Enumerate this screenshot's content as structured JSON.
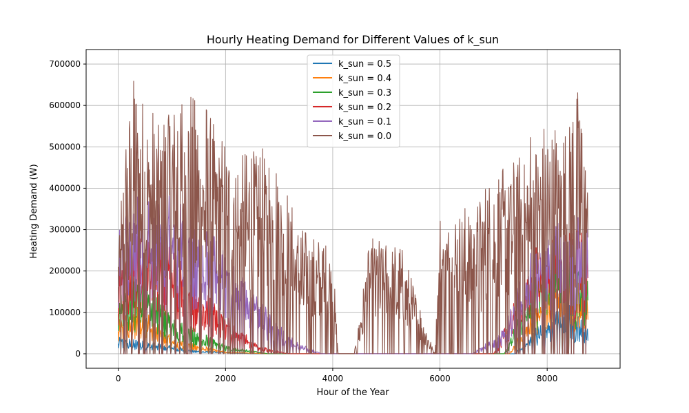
{
  "chart_data": {
    "type": "line",
    "title": "Hourly Heating Demand for Different Values of k_sun",
    "xlabel": "Hour of the Year",
    "ylabel": "Heating Demand (W)",
    "xlim": [
      -600,
      9360
    ],
    "ylim": [
      -35000,
      735000
    ],
    "x_ticks": [
      0,
      2000,
      4000,
      6000,
      8000
    ],
    "x_tick_labels": [
      "0",
      "2000",
      "4000",
      "6000",
      "8000"
    ],
    "y_ticks": [
      0,
      100000,
      200000,
      300000,
      400000,
      500000,
      600000,
      700000
    ],
    "y_tick_labels": [
      "0",
      "100000",
      "200000",
      "300000",
      "400000",
      "500000",
      "600000",
      "700000"
    ],
    "grid": true,
    "legend_placement": "upper-center",
    "x_range": [
      0,
      8760
    ],
    "series": [
      {
        "name": "k_sun = 0.5",
        "color": "#1f77b4",
        "factor": 0.1,
        "envelope": [
          [
            0,
            40000
          ],
          [
            500,
            30000
          ],
          [
            1500,
            8000
          ],
          [
            2500,
            0
          ],
          [
            7400,
            0
          ],
          [
            7900,
            80000
          ],
          [
            8400,
            120000
          ],
          [
            8760,
            60000
          ]
        ]
      },
      {
        "name": "k_sun = 0.4",
        "color": "#ff7f0e",
        "factor": 0.2,
        "envelope": [
          [
            0,
            80000
          ],
          [
            400,
            120000
          ],
          [
            1000,
            40000
          ],
          [
            2000,
            5000
          ],
          [
            2800,
            0
          ],
          [
            7300,
            0
          ],
          [
            7900,
            160000
          ],
          [
            8400,
            200000
          ],
          [
            8760,
            140000
          ]
        ]
      },
      {
        "name": "k_sun = 0.3",
        "color": "#2ca02c",
        "factor": 0.33,
        "envelope": [
          [
            0,
            130000
          ],
          [
            400,
            220000
          ],
          [
            1000,
            90000
          ],
          [
            2000,
            20000
          ],
          [
            2800,
            0
          ],
          [
            7200,
            0
          ],
          [
            7900,
            240000
          ],
          [
            8500,
            230000
          ],
          [
            8760,
            200000
          ]
        ]
      },
      {
        "name": "k_sun = 0.2",
        "color": "#d62728",
        "factor": 0.48,
        "envelope": [
          [
            0,
            200000
          ],
          [
            400,
            340000
          ],
          [
            1000,
            250000
          ],
          [
            1800,
            120000
          ],
          [
            2600,
            20000
          ],
          [
            3200,
            0
          ],
          [
            7000,
            0
          ],
          [
            7800,
            260000
          ],
          [
            8600,
            300000
          ],
          [
            8760,
            260000
          ]
        ]
      },
      {
        "name": "k_sun = 0.1",
        "color": "#9467bd",
        "factor": 0.66,
        "envelope": [
          [
            0,
            290000
          ],
          [
            300,
            400000
          ],
          [
            1000,
            380000
          ],
          [
            1700,
            300000
          ],
          [
            2500,
            150000
          ],
          [
            3300,
            30000
          ],
          [
            3800,
            0
          ],
          [
            6600,
            0
          ],
          [
            7200,
            60000
          ],
          [
            7800,
            300000
          ],
          [
            8600,
            330000
          ],
          [
            8760,
            320000
          ]
        ]
      },
      {
        "name": "k_sun = 0.0",
        "color": "#8c564b",
        "factor": 1.0,
        "envelope": [
          [
            0,
            290000
          ],
          [
            300,
            715000
          ],
          [
            700,
            560000
          ],
          [
            1100,
            640000
          ],
          [
            1600,
            600000
          ],
          [
            2100,
            470000
          ],
          [
            2800,
            500000
          ],
          [
            3400,
            300000
          ],
          [
            4000,
            250000
          ],
          [
            4100,
            0
          ],
          [
            4400,
            0
          ],
          [
            4700,
            280000
          ],
          [
            5300,
            250000
          ],
          [
            5900,
            0
          ],
          [
            6000,
            320000
          ],
          [
            6600,
            360000
          ],
          [
            7200,
            450000
          ],
          [
            7800,
            540000
          ],
          [
            8300,
            550000
          ],
          [
            8600,
            640000
          ],
          [
            8760,
            445000
          ]
        ]
      }
    ]
  }
}
